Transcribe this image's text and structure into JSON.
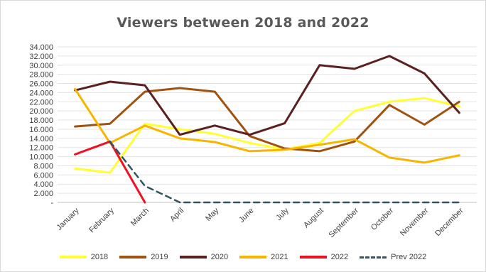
{
  "chart_data": {
    "type": "line",
    "title": "Viewers between 2018 and 2022",
    "xlabel": "",
    "ylabel": "",
    "categories": [
      "January",
      "February",
      "March",
      "April",
      "May",
      "June",
      "July",
      "August",
      "September",
      "October",
      "November",
      "December"
    ],
    "y_ticks": [
      "-",
      "2.000",
      "4.000",
      "6.000",
      "8.000",
      "10.000",
      "12.000",
      "14.000",
      "16.000",
      "18.000",
      "20.000",
      "22.000",
      "24.000",
      "26.000",
      "28.000",
      "30.000",
      "32.000",
      "34.000"
    ],
    "ylim": [
      0,
      34000
    ],
    "grid": true,
    "legend_position": "bottom",
    "series": [
      {
        "name": "2018",
        "color": "#ffff33",
        "dash": false,
        "values": [
          7400,
          6500,
          17200,
          16000,
          15000,
          13000,
          11600,
          13000,
          20000,
          22000,
          22800,
          21000
        ]
      },
      {
        "name": "2019",
        "color": "#a0520f",
        "dash": false,
        "values": [
          16600,
          17200,
          24200,
          25000,
          24200,
          14500,
          11800,
          11200,
          13300,
          21300,
          17000,
          22000
        ]
      },
      {
        "name": "2020",
        "color": "#5b2020",
        "dash": false,
        "values": [
          24500,
          26400,
          25600,
          14800,
          16800,
          14800,
          17300,
          30000,
          29200,
          32000,
          28200,
          19600
        ]
      },
      {
        "name": "2021",
        "color": "#f7b500",
        "dash": false,
        "values": [
          24800,
          13000,
          16800,
          14000,
          13200,
          11200,
          11500,
          12600,
          13800,
          9800,
          8700,
          10300
        ]
      },
      {
        "name": "2022",
        "color": "#ee1122",
        "dash": false,
        "values": [
          10500,
          13300,
          0,
          null,
          null,
          null,
          null,
          null,
          null,
          null,
          null,
          null
        ]
      },
      {
        "name": "Prev 2022",
        "color": "#2e5560",
        "dash": true,
        "values": [
          null,
          13300,
          3600,
          0,
          0,
          0,
          0,
          0,
          0,
          0,
          0,
          0
        ]
      }
    ]
  }
}
